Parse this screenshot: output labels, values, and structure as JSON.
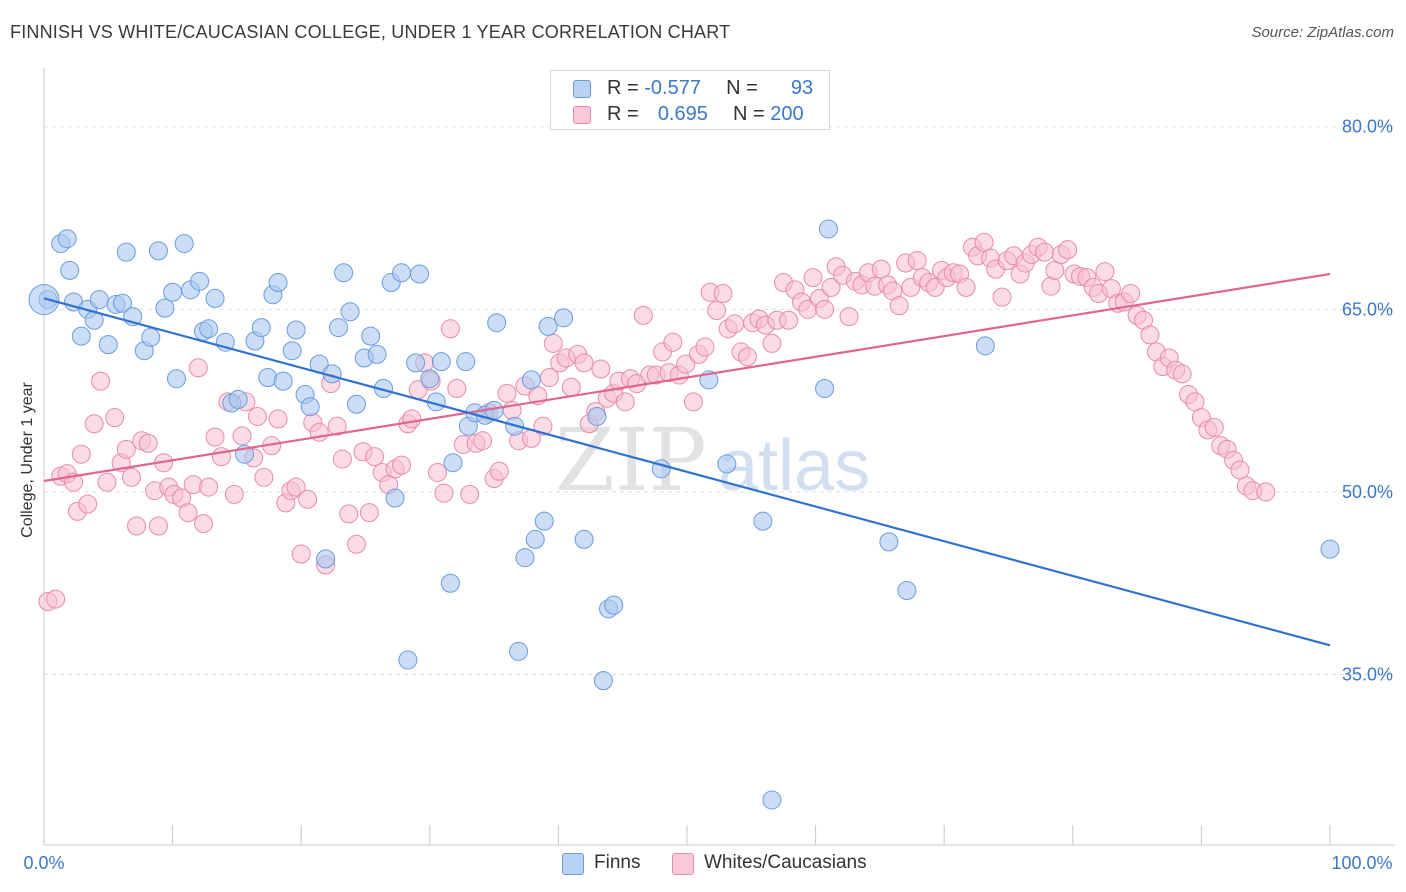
{
  "header": {
    "title": "FINNISH VS WHITE/CAUCASIAN COLLEGE, UNDER 1 YEAR CORRELATION CHART",
    "source": "Source: ZipAtlas.com"
  },
  "legend_top": {
    "rows": [
      {
        "r_label": "R =",
        "r_value": "-0.577",
        "n_label": "N =",
        "n_value": "93"
      },
      {
        "r_label": "R =",
        "r_value": "0.695",
        "n_label": "N =",
        "n_value": "200"
      }
    ]
  },
  "legend_bottom": {
    "finns": "Finns",
    "whites": "Whites/Caucasians"
  },
  "axes": {
    "ylabel": "College, Under 1 year",
    "x_min_label": "0.0%",
    "x_max_label": "100.0%",
    "y_ticks": [
      "80.0%",
      "65.0%",
      "50.0%",
      "35.0%"
    ]
  },
  "watermark": {
    "zip": "ZIP",
    "atlas": "atlas"
  },
  "colors": {
    "finns_fill": "#a9c8f0",
    "finns_stroke": "#6b9be0",
    "finns_line": "#2f72d0",
    "whites_fill": "#f7c0d2",
    "whites_stroke": "#e88aaa",
    "whites_line": "#e06690",
    "tick_label": "#3b78c9"
  },
  "chart_data": {
    "type": "scatter",
    "xlim": [
      0,
      100
    ],
    "ylim": [
      21,
      84
    ],
    "grid": true,
    "series": [
      {
        "name": "Finns",
        "trend": {
          "x": [
            0,
            100
          ],
          "y": [
            65.9,
            37.4
          ]
        },
        "points": [
          [
            0.3,
            65.8
          ],
          [
            1.3,
            70.4
          ],
          [
            1.8,
            70.8
          ],
          [
            2.0,
            68.2
          ],
          [
            2.3,
            65.6
          ],
          [
            2.9,
            62.8
          ],
          [
            3.4,
            65.0
          ],
          [
            3.9,
            64.1
          ],
          [
            4.3,
            65.8
          ],
          [
            5.0,
            62.1
          ],
          [
            5.6,
            65.4
          ],
          [
            6.1,
            65.5
          ],
          [
            6.4,
            69.7
          ],
          [
            6.9,
            64.4
          ],
          [
            7.8,
            61.6
          ],
          [
            8.3,
            62.7
          ],
          [
            8.9,
            69.8
          ],
          [
            9.4,
            65.1
          ],
          [
            10.0,
            66.4
          ],
          [
            10.3,
            59.3
          ],
          [
            10.9,
            70.4
          ],
          [
            11.4,
            66.6
          ],
          [
            12.1,
            67.3
          ],
          [
            12.4,
            63.2
          ],
          [
            12.8,
            63.4
          ],
          [
            13.3,
            65.9
          ],
          [
            14.1,
            62.3
          ],
          [
            14.6,
            57.3
          ],
          [
            15.1,
            57.6
          ],
          [
            15.6,
            53.1
          ],
          [
            16.4,
            62.4
          ],
          [
            16.9,
            63.5
          ],
          [
            17.4,
            59.4
          ],
          [
            17.8,
            66.2
          ],
          [
            18.2,
            67.2
          ],
          [
            18.6,
            59.1
          ],
          [
            19.3,
            61.6
          ],
          [
            19.6,
            63.3
          ],
          [
            20.3,
            58.0
          ],
          [
            20.7,
            57.0
          ],
          [
            21.4,
            60.5
          ],
          [
            21.9,
            44.5
          ],
          [
            22.4,
            59.7
          ],
          [
            22.9,
            63.5
          ],
          [
            23.3,
            68.0
          ],
          [
            23.8,
            64.8
          ],
          [
            24.3,
            57.2
          ],
          [
            24.9,
            61.0
          ],
          [
            25.4,
            62.8
          ],
          [
            25.9,
            61.3
          ],
          [
            26.4,
            58.5
          ],
          [
            27.0,
            67.2
          ],
          [
            27.3,
            49.5
          ],
          [
            27.8,
            68.0
          ],
          [
            28.3,
            36.2
          ],
          [
            28.9,
            60.6
          ],
          [
            29.2,
            67.9
          ],
          [
            30.0,
            59.3
          ],
          [
            30.5,
            57.4
          ],
          [
            30.9,
            60.7
          ],
          [
            31.6,
            42.5
          ],
          [
            31.8,
            52.4
          ],
          [
            32.8,
            60.7
          ],
          [
            33.0,
            55.4
          ],
          [
            33.5,
            56.5
          ],
          [
            34.3,
            56.3
          ],
          [
            35.0,
            56.7
          ],
          [
            35.2,
            63.9
          ],
          [
            36.6,
            55.4
          ],
          [
            36.9,
            36.9
          ],
          [
            37.4,
            44.6
          ],
          [
            37.9,
            59.2
          ],
          [
            38.2,
            46.1
          ],
          [
            38.9,
            47.6
          ],
          [
            39.2,
            63.6
          ],
          [
            40.4,
            64.3
          ],
          [
            42.0,
            46.1
          ],
          [
            43.0,
            56.2
          ],
          [
            43.5,
            34.5
          ],
          [
            43.9,
            40.4
          ],
          [
            44.3,
            40.7
          ],
          [
            48.0,
            51.9
          ],
          [
            51.7,
            59.2
          ],
          [
            53.1,
            52.3
          ],
          [
            55.9,
            47.6
          ],
          [
            56.6,
            24.7
          ],
          [
            60.7,
            58.5
          ],
          [
            61.0,
            71.6
          ],
          [
            65.7,
            45.9
          ],
          [
            67.1,
            41.9
          ],
          [
            73.2,
            62.0
          ],
          [
            100.0,
            45.3
          ],
          [
            0.0,
            65.8
          ]
        ]
      },
      {
        "name": "Whites/Caucasians",
        "trend": {
          "x": [
            0,
            100
          ],
          "y": [
            50.9,
            67.9
          ]
        },
        "points": [
          [
            0.3,
            41.0
          ],
          [
            0.9,
            41.2
          ],
          [
            1.3,
            51.3
          ],
          [
            1.8,
            51.5
          ],
          [
            2.3,
            50.8
          ],
          [
            2.6,
            48.4
          ],
          [
            2.9,
            53.1
          ],
          [
            3.4,
            49.0
          ],
          [
            3.9,
            55.6
          ],
          [
            4.4,
            59.1
          ],
          [
            4.9,
            50.8
          ],
          [
            5.5,
            56.1
          ],
          [
            6.0,
            52.4
          ],
          [
            6.4,
            53.5
          ],
          [
            6.8,
            51.2
          ],
          [
            7.2,
            47.2
          ],
          [
            7.6,
            54.2
          ],
          [
            8.1,
            54.0
          ],
          [
            8.6,
            50.1
          ],
          [
            8.9,
            47.2
          ],
          [
            9.3,
            52.4
          ],
          [
            9.7,
            50.4
          ],
          [
            10.1,
            49.8
          ],
          [
            10.7,
            49.5
          ],
          [
            11.2,
            48.3
          ],
          [
            11.6,
            50.6
          ],
          [
            12.0,
            60.2
          ],
          [
            12.4,
            47.4
          ],
          [
            12.8,
            50.4
          ],
          [
            13.3,
            54.5
          ],
          [
            13.8,
            52.9
          ],
          [
            14.3,
            57.4
          ],
          [
            14.8,
            49.8
          ],
          [
            15.4,
            54.6
          ],
          [
            15.7,
            57.4
          ],
          [
            16.3,
            52.8
          ],
          [
            16.6,
            56.2
          ],
          [
            17.1,
            51.2
          ],
          [
            17.7,
            53.8
          ],
          [
            18.2,
            56.0
          ],
          [
            18.8,
            49.1
          ],
          [
            19.2,
            50.1
          ],
          [
            19.6,
            50.4
          ],
          [
            20.0,
            44.9
          ],
          [
            20.5,
            49.4
          ],
          [
            20.9,
            55.7
          ],
          [
            21.4,
            54.9
          ],
          [
            21.9,
            44.0
          ],
          [
            22.3,
            58.9
          ],
          [
            22.8,
            55.4
          ],
          [
            23.2,
            52.7
          ],
          [
            23.7,
            48.2
          ],
          [
            24.3,
            45.7
          ],
          [
            24.8,
            53.3
          ],
          [
            25.3,
            48.3
          ],
          [
            25.7,
            52.9
          ],
          [
            26.3,
            51.6
          ],
          [
            26.8,
            50.6
          ],
          [
            27.3,
            51.9
          ],
          [
            27.8,
            52.2
          ],
          [
            28.3,
            55.6
          ],
          [
            28.6,
            56.0
          ],
          [
            29.1,
            58.4
          ],
          [
            29.6,
            60.6
          ],
          [
            30.1,
            59.1
          ],
          [
            30.6,
            51.6
          ],
          [
            31.1,
            49.9
          ],
          [
            31.6,
            63.4
          ],
          [
            32.1,
            58.5
          ],
          [
            32.6,
            53.9
          ],
          [
            33.1,
            49.8
          ],
          [
            33.6,
            54.0
          ],
          [
            34.1,
            54.2
          ],
          [
            34.6,
            56.5
          ],
          [
            35.0,
            51.1
          ],
          [
            35.4,
            51.7
          ],
          [
            36.0,
            58.1
          ],
          [
            36.4,
            56.7
          ],
          [
            36.9,
            54.2
          ],
          [
            37.4,
            58.7
          ],
          [
            37.9,
            54.4
          ],
          [
            38.4,
            57.9
          ],
          [
            38.8,
            55.4
          ],
          [
            39.3,
            59.4
          ],
          [
            39.6,
            62.2
          ],
          [
            40.1,
            60.6
          ],
          [
            40.6,
            61.0
          ],
          [
            41.0,
            58.6
          ],
          [
            41.5,
            61.3
          ],
          [
            42.0,
            60.6
          ],
          [
            42.4,
            55.6
          ],
          [
            42.9,
            56.6
          ],
          [
            43.3,
            60.1
          ],
          [
            43.8,
            57.7
          ],
          [
            44.3,
            58.1
          ],
          [
            44.7,
            59.1
          ],
          [
            45.2,
            57.4
          ],
          [
            45.6,
            59.3
          ],
          [
            46.1,
            58.9
          ],
          [
            46.6,
            64.5
          ],
          [
            47.1,
            59.6
          ],
          [
            47.6,
            59.6
          ],
          [
            48.1,
            61.5
          ],
          [
            48.6,
            59.8
          ],
          [
            48.9,
            62.3
          ],
          [
            49.4,
            59.6
          ],
          [
            49.9,
            60.5
          ],
          [
            50.5,
            57.4
          ],
          [
            50.9,
            61.3
          ],
          [
            51.4,
            61.9
          ],
          [
            51.8,
            66.4
          ],
          [
            52.3,
            64.9
          ],
          [
            52.8,
            66.3
          ],
          [
            53.2,
            63.4
          ],
          [
            53.7,
            63.8
          ],
          [
            54.2,
            61.5
          ],
          [
            54.7,
            61.1
          ],
          [
            55.1,
            63.9
          ],
          [
            55.6,
            64.2
          ],
          [
            56.1,
            63.7
          ],
          [
            56.6,
            62.2
          ],
          [
            57.0,
            64.1
          ],
          [
            57.5,
            67.2
          ],
          [
            57.9,
            64.1
          ],
          [
            58.4,
            66.6
          ],
          [
            58.9,
            65.6
          ],
          [
            59.4,
            65.0
          ],
          [
            59.8,
            67.6
          ],
          [
            60.3,
            65.9
          ],
          [
            60.7,
            65.0
          ],
          [
            61.2,
            66.8
          ],
          [
            61.6,
            68.5
          ],
          [
            62.1,
            67.8
          ],
          [
            62.6,
            64.4
          ],
          [
            63.1,
            67.3
          ],
          [
            63.6,
            67.0
          ],
          [
            64.1,
            68.0
          ],
          [
            64.6,
            66.9
          ],
          [
            65.1,
            68.3
          ],
          [
            65.6,
            67.0
          ],
          [
            66.0,
            66.5
          ],
          [
            66.5,
            65.3
          ],
          [
            67.0,
            68.8
          ],
          [
            67.4,
            66.8
          ],
          [
            67.9,
            69.0
          ],
          [
            68.3,
            67.6
          ],
          [
            68.8,
            67.2
          ],
          [
            69.3,
            66.8
          ],
          [
            69.8,
            68.2
          ],
          [
            70.2,
            67.6
          ],
          [
            70.7,
            68.0
          ],
          [
            71.2,
            67.9
          ],
          [
            71.7,
            66.8
          ],
          [
            72.2,
            70.1
          ],
          [
            72.6,
            69.4
          ],
          [
            73.1,
            70.5
          ],
          [
            73.6,
            69.2
          ],
          [
            74.0,
            68.3
          ],
          [
            74.5,
            66.0
          ],
          [
            74.9,
            69.0
          ],
          [
            75.4,
            69.4
          ],
          [
            75.9,
            67.9
          ],
          [
            76.3,
            68.8
          ],
          [
            76.8,
            69.5
          ],
          [
            77.3,
            70.1
          ],
          [
            77.8,
            69.7
          ],
          [
            78.3,
            66.9
          ],
          [
            78.6,
            68.2
          ],
          [
            79.1,
            69.5
          ],
          [
            79.6,
            69.9
          ],
          [
            80.1,
            67.9
          ],
          [
            80.6,
            67.7
          ],
          [
            81.1,
            67.6
          ],
          [
            81.6,
            66.8
          ],
          [
            82.0,
            66.3
          ],
          [
            82.5,
            68.1
          ],
          [
            83.0,
            66.7
          ],
          [
            83.5,
            65.5
          ],
          [
            84.0,
            65.6
          ],
          [
            84.5,
            66.3
          ],
          [
            85.0,
            64.5
          ],
          [
            85.5,
            64.1
          ],
          [
            86.0,
            62.9
          ],
          [
            86.5,
            61.5
          ],
          [
            87.0,
            60.3
          ],
          [
            87.5,
            61.0
          ],
          [
            88.0,
            60.0
          ],
          [
            88.5,
            59.7
          ],
          [
            89.0,
            58.0
          ],
          [
            89.5,
            57.4
          ],
          [
            90.0,
            56.1
          ],
          [
            90.5,
            55.1
          ],
          [
            91.0,
            55.3
          ],
          [
            91.5,
            53.8
          ],
          [
            92.0,
            53.5
          ],
          [
            92.5,
            52.6
          ],
          [
            93.0,
            51.8
          ],
          [
            93.5,
            50.5
          ],
          [
            94.0,
            50.1
          ],
          [
            95.0,
            50.0
          ]
        ]
      }
    ]
  }
}
